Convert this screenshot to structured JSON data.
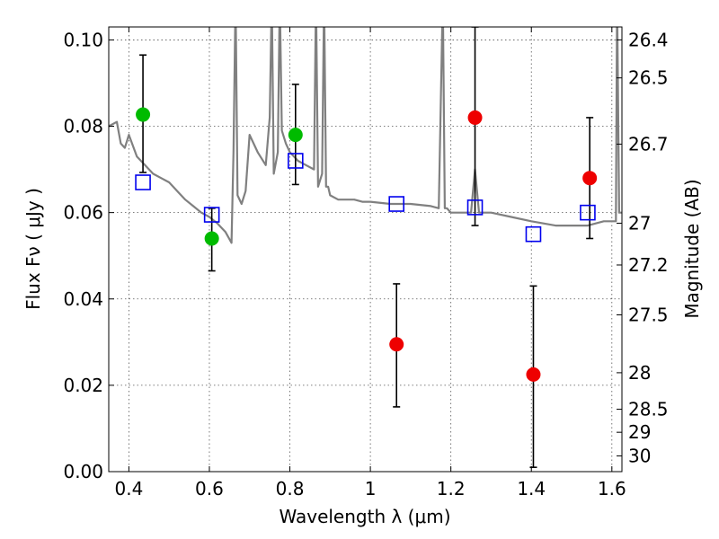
{
  "chart_data": {
    "type": "scatter",
    "xlabel": "Wavelength  λ (μm)",
    "ylabel": "Flux  Fν  ( μJy )",
    "y2label": "Magnitude (AB)",
    "xlim": [
      0.35,
      1.625
    ],
    "ylim": [
      0.0,
      0.103
    ],
    "grid": true,
    "x_ticks": [
      0.4,
      0.6,
      0.8,
      1.0,
      1.2,
      1.4,
      1.6
    ],
    "x_tick_labels": [
      "0.4",
      "0.6",
      "0.8",
      "1",
      "1.2",
      "1.4",
      "1.6"
    ],
    "y_ticks": [
      0.0,
      0.02,
      0.04,
      0.06,
      0.08,
      0.1
    ],
    "y_tick_labels": [
      "0.00",
      "0.02",
      "0.04",
      "0.06",
      "0.08",
      "0.10"
    ],
    "mag_ticks": [
      {
        "label": "26.4",
        "mag": 26.4
      },
      {
        "label": "26.5",
        "mag": 26.5
      },
      {
        "label": "26.7",
        "mag": 26.7
      },
      {
        "label": "27",
        "mag": 27.0
      },
      {
        "label": "27.2",
        "mag": 27.2
      },
      {
        "label": "27.5",
        "mag": 27.5
      },
      {
        "label": "28",
        "mag": 28.0
      },
      {
        "label": "28.5",
        "mag": 28.5
      },
      {
        "label": "29",
        "mag": 29.0
      },
      {
        "label": "30",
        "mag": 30.0
      }
    ],
    "series": [
      {
        "color": "#00bb00",
        "marker": "circle",
        "points": [
          {
            "x": 0.435,
            "y": 0.0827,
            "ylo": 0.0693,
            "yhi": 0.0965
          },
          {
            "x": 0.606,
            "y": 0.054,
            "ylo": 0.0465,
            "yhi": 0.061
          },
          {
            "x": 0.814,
            "y": 0.078,
            "ylo": 0.0665,
            "yhi": 0.0897
          }
        ]
      },
      {
        "color": "#ee0000",
        "marker": "circle",
        "points": [
          {
            "x": 1.065,
            "y": 0.0295,
            "ylo": 0.015,
            "yhi": 0.0435
          },
          {
            "x": 1.26,
            "y": 0.082,
            "ylo": 0.057,
            "yhi": 0.103
          },
          {
            "x": 1.405,
            "y": 0.0225,
            "ylo": 0.001,
            "yhi": 0.043
          },
          {
            "x": 1.545,
            "y": 0.068,
            "ylo": 0.054,
            "yhi": 0.082
          }
        ]
      },
      {
        "color": "#0000ee",
        "marker": "open-square",
        "points": [
          {
            "x": 0.435,
            "y": 0.067
          },
          {
            "x": 0.606,
            "y": 0.0595
          },
          {
            "x": 0.814,
            "y": 0.072
          },
          {
            "x": 1.065,
            "y": 0.062
          },
          {
            "x": 1.26,
            "y": 0.0612
          },
          {
            "x": 1.405,
            "y": 0.055
          },
          {
            "x": 1.54,
            "y": 0.06
          }
        ]
      },
      {
        "color": "#808080",
        "marker": "line",
        "x": [
          0.35,
          0.37,
          0.38,
          0.39,
          0.4,
          0.42,
          0.44,
          0.46,
          0.48,
          0.5,
          0.52,
          0.54,
          0.56,
          0.58,
          0.6,
          0.62,
          0.64,
          0.655,
          0.66,
          0.665,
          0.67,
          0.68,
          0.69,
          0.7,
          0.72,
          0.74,
          0.75,
          0.755,
          0.76,
          0.77,
          0.775,
          0.78,
          0.79,
          0.8,
          0.82,
          0.84,
          0.86,
          0.865,
          0.87,
          0.88,
          0.885,
          0.89,
          0.895,
          0.9,
          0.92,
          0.94,
          0.96,
          0.98,
          1.0,
          1.05,
          1.1,
          1.15,
          1.17,
          1.18,
          1.185,
          1.19,
          1.2,
          1.25,
          1.26,
          1.27,
          1.3,
          1.35,
          1.4,
          1.43,
          1.46,
          1.5,
          1.54,
          1.58,
          1.61,
          1.613,
          1.618,
          1.625
        ],
        "y": [
          0.08,
          0.081,
          0.076,
          0.075,
          0.078,
          0.073,
          0.071,
          0.069,
          0.068,
          0.067,
          0.065,
          0.063,
          0.0615,
          0.06,
          0.059,
          0.0575,
          0.0555,
          0.053,
          0.074,
          0.11,
          0.064,
          0.062,
          0.065,
          0.078,
          0.074,
          0.071,
          0.082,
          0.11,
          0.069,
          0.074,
          0.11,
          0.079,
          0.076,
          0.074,
          0.072,
          0.071,
          0.07,
          0.11,
          0.066,
          0.069,
          0.11,
          0.066,
          0.066,
          0.064,
          0.063,
          0.063,
          0.063,
          0.0625,
          0.0625,
          0.062,
          0.062,
          0.0615,
          0.061,
          0.11,
          0.061,
          0.061,
          0.06,
          0.06,
          0.07,
          0.06,
          0.06,
          0.059,
          0.058,
          0.0575,
          0.057,
          0.057,
          0.057,
          0.058,
          0.058,
          0.11,
          0.06,
          0.06
        ]
      }
    ]
  }
}
